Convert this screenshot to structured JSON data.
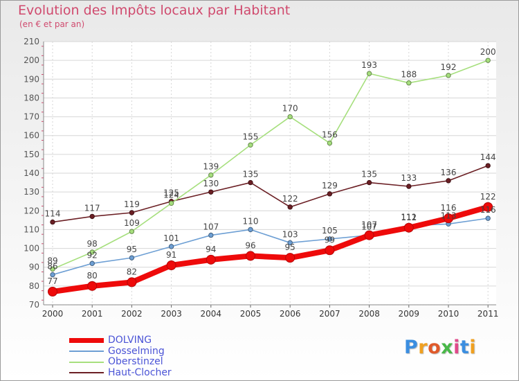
{
  "chart_data": {
    "type": "line",
    "title": "Evolution des Impôts locaux par Habitant",
    "subtitle": "(en € et par an)",
    "xlabel": "",
    "ylabel": "",
    "ylim": [
      70,
      210
    ],
    "yticks": [
      70,
      80,
      90,
      100,
      110,
      120,
      130,
      140,
      150,
      160,
      170,
      180,
      190,
      200,
      210
    ],
    "grid": true,
    "legend_position": "bottom-left",
    "categories": [
      "2000",
      "2001",
      "2002",
      "2003",
      "2004",
      "2005",
      "2006",
      "2007",
      "2008",
      "2009",
      "2010",
      "2011"
    ],
    "series": [
      {
        "name": "Haut-Clocher",
        "color": "#6b1f24",
        "values": [
          114,
          117,
          119,
          125,
          130,
          135,
          122,
          129,
          135,
          133,
          136,
          144
        ]
      },
      {
        "name": "Oberstinzel",
        "color": "#a6df7d",
        "values": [
          89,
          98,
          109,
          124,
          139,
          155,
          170,
          156,
          193,
          188,
          192,
          200
        ]
      },
      {
        "name": "Gosselming",
        "color": "#6d9fd4",
        "values": [
          86,
          92,
          95,
          101,
          107,
          110,
          103,
          105,
          107,
          112,
          113,
          116
        ]
      },
      {
        "name": "DOLVING",
        "color": "#ee0a0a",
        "values": [
          77,
          80,
          82,
          91,
          94,
          96,
          95,
          99,
          107,
          111,
          116,
          122
        ]
      }
    ],
    "legend": [
      "DOLVING",
      "Gosselming",
      "Oberstinzel",
      "Haut-Clocher"
    ]
  },
  "logo": {
    "letters": [
      "P",
      "r",
      "o",
      "x",
      "i",
      "t",
      "i"
    ],
    "colors": [
      "#3b8ee0",
      "#f0a020",
      "#e05a2a",
      "#48b848",
      "#e04a8a",
      "#3b8ee0",
      "#f0a020"
    ]
  }
}
